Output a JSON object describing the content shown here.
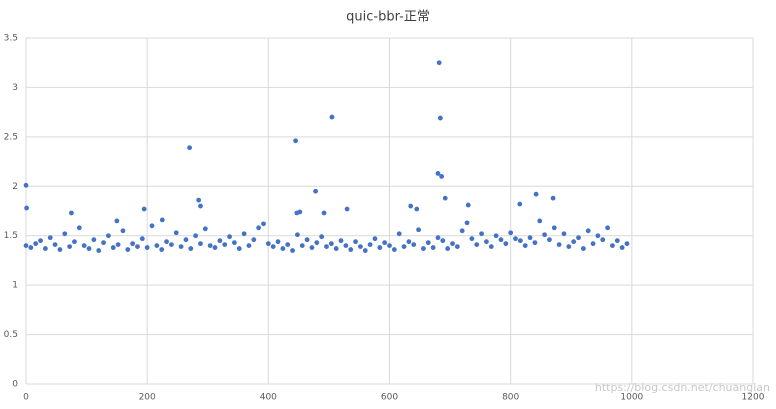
{
  "chart_data": {
    "type": "scatter",
    "title": "quic-bbr-正常",
    "watermark": "https://blog.csdn.net/chuanglan",
    "color": "#4472c4",
    "grid": true,
    "xlim": [
      0,
      1200
    ],
    "xticks": [
      0,
      200,
      400,
      600,
      800,
      1000,
      1200
    ],
    "ylim": [
      0,
      3.5
    ],
    "yticks": [
      0,
      0.5,
      1,
      1.5,
      2,
      2.5,
      3,
      3.5
    ],
    "x": [
      0,
      8,
      16,
      24,
      32,
      40,
      48,
      56,
      64,
      72,
      80,
      88,
      96,
      104,
      112,
      120,
      128,
      136,
      144,
      152,
      160,
      168,
      176,
      184,
      192,
      200,
      208,
      216,
      224,
      232,
      240,
      248,
      256,
      264,
      272,
      280,
      288,
      296,
      304,
      312,
      320,
      328,
      336,
      344,
      352,
      360,
      368,
      376,
      384,
      392,
      400,
      408,
      416,
      424,
      432,
      440,
      448,
      456,
      464,
      472,
      480,
      488,
      496,
      504,
      512,
      520,
      528,
      536,
      544,
      552,
      560,
      568,
      576,
      584,
      592,
      600,
      608,
      616,
      624,
      632,
      640,
      648,
      656,
      664,
      672,
      680,
      688,
      696,
      704,
      712,
      720,
      728,
      736,
      744,
      752,
      760,
      768,
      776,
      784,
      792,
      800,
      808,
      816,
      824,
      832,
      840,
      848,
      856,
      864,
      872,
      880,
      888,
      896,
      904,
      912,
      920,
      928,
      936,
      944,
      952,
      960,
      968,
      976,
      984,
      992,
      0,
      1,
      270,
      285,
      288,
      445,
      447,
      452,
      478,
      492,
      505,
      530,
      680,
      682,
      684,
      686,
      692,
      842,
      870,
      195,
      75,
      635,
      645,
      730,
      815,
      150,
      225
    ],
    "values": [
      1.4,
      1.38,
      1.42,
      1.45,
      1.37,
      1.48,
      1.41,
      1.36,
      1.52,
      1.39,
      1.44,
      1.58,
      1.4,
      1.37,
      1.46,
      1.35,
      1.43,
      1.5,
      1.38,
      1.41,
      1.55,
      1.36,
      1.42,
      1.39,
      1.47,
      1.38,
      1.6,
      1.4,
      1.36,
      1.44,
      1.41,
      1.53,
      1.39,
      1.46,
      1.37,
      1.5,
      1.42,
      1.57,
      1.4,
      1.38,
      1.45,
      1.41,
      1.49,
      1.43,
      1.37,
      1.52,
      1.4,
      1.46,
      1.58,
      1.62,
      1.42,
      1.39,
      1.44,
      1.37,
      1.41,
      1.35,
      1.51,
      1.4,
      1.46,
      1.38,
      1.43,
      1.49,
      1.39,
      1.42,
      1.37,
      1.45,
      1.4,
      1.36,
      1.44,
      1.39,
      1.35,
      1.41,
      1.47,
      1.38,
      1.43,
      1.4,
      1.36,
      1.52,
      1.39,
      1.44,
      1.41,
      1.56,
      1.37,
      1.43,
      1.38,
      1.48,
      1.45,
      1.37,
      1.42,
      1.39,
      1.55,
      1.63,
      1.47,
      1.41,
      1.52,
      1.44,
      1.39,
      1.5,
      1.46,
      1.42,
      1.53,
      1.47,
      1.45,
      1.4,
      1.48,
      1.43,
      1.65,
      1.51,
      1.46,
      1.58,
      1.41,
      1.52,
      1.39,
      1.44,
      1.48,
      1.37,
      1.55,
      1.42,
      1.5,
      1.46,
      1.58,
      1.4,
      1.45,
      1.38,
      1.42,
      2.01,
      1.78,
      2.39,
      1.86,
      1.8,
      2.46,
      1.73,
      1.74,
      1.95,
      1.73,
      2.7,
      1.77,
      2.13,
      3.25,
      2.69,
      2.1,
      1.88,
      1.92,
      1.88,
      1.77,
      1.73,
      1.8,
      1.77,
      1.81,
      1.82,
      1.65,
      1.66
    ]
  }
}
